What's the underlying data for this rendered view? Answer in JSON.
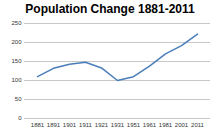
{
  "chart_data": {
    "type": "line",
    "title": "Population Change 1881-2011",
    "categories": [
      "1881",
      "1891",
      "1901",
      "1911",
      "1921",
      "1931",
      "1951",
      "1961",
      "1981",
      "2001",
      "2011"
    ],
    "values": [
      110,
      132,
      143,
      148,
      133,
      100,
      110,
      138,
      170,
      192,
      222
    ],
    "color": "#4a7ebb",
    "ylim": [
      0,
      250
    ],
    "yticks": [
      0,
      50,
      100,
      150,
      200,
      250
    ],
    "grid": true
  }
}
